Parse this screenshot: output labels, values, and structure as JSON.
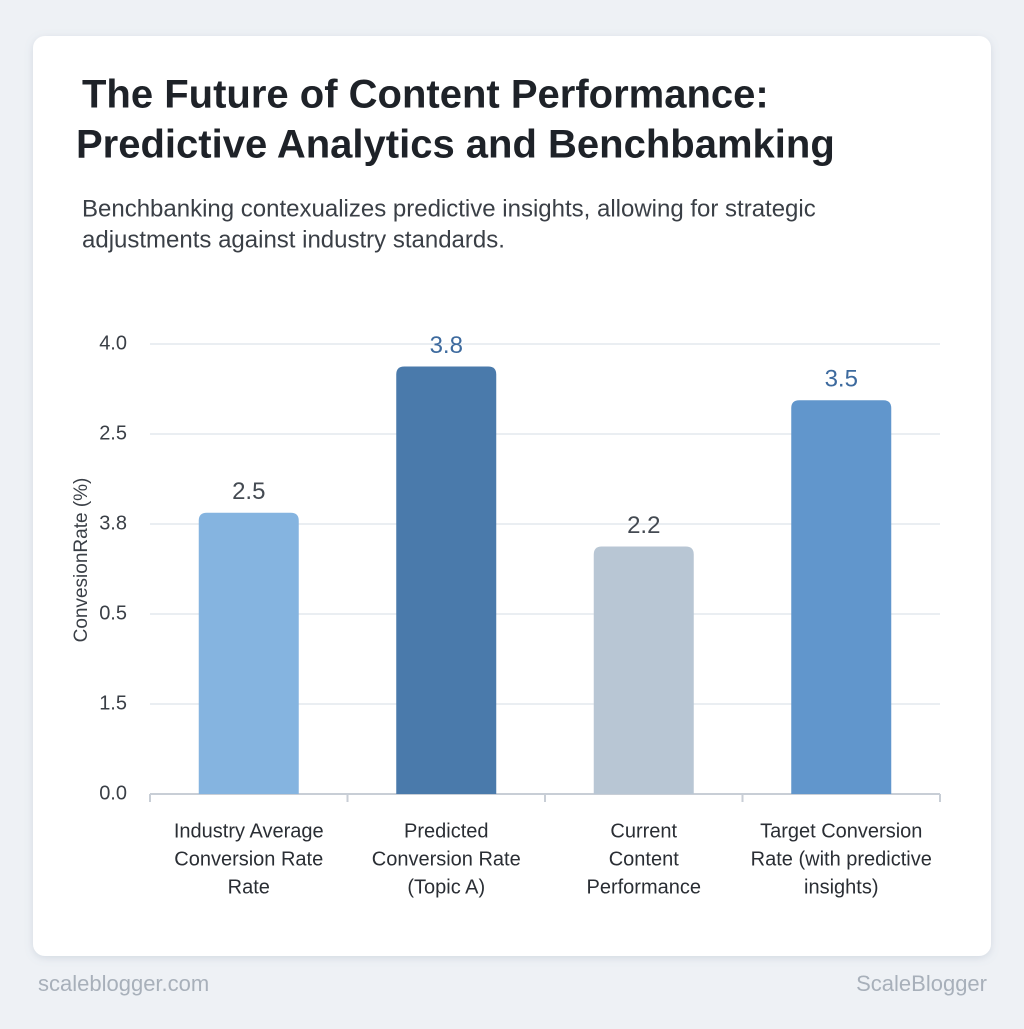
{
  "chart_data": {
    "type": "bar",
    "title": [
      "The Future of Content Performance:",
      "Predictive Analytics and Benchbamking"
    ],
    "subtitle": [
      "Benchbanking contexualizes predictive insights, allowing for strategic",
      "adjustments against industry standards."
    ],
    "y_label": "ConvesionRate (%)",
    "categories": [
      [
        "Industry Average",
        "Conversion Rate",
        "Rate"
      ],
      [
        "Predicted",
        "Conversion Rate",
        "(Topic A)"
      ],
      [
        "Current",
        "Content",
        "Performance"
      ],
      [
        "Target Conversion",
        "Rate (with predictive",
        "insights)"
      ]
    ],
    "values": [
      2.5,
      3.8,
      2.2,
      3.5
    ],
    "colors": [
      "#85b4e0",
      "#4a7aab",
      "#b8c6d4",
      "#6196cc"
    ],
    "value_label_colors": [
      "#444a52",
      "#3d6a9e",
      "#444a52",
      "#3d6a9e"
    ],
    "ylim": [
      0,
      4
    ],
    "yticks": [
      {
        "value": 0,
        "label": "0.0"
      },
      1.5,
      0.5,
      3.8,
      2.5,
      {
        "value": 4,
        "label": "4.0"
      }
    ],
    "grid": true,
    "footer_left": "scaleblogger.com",
    "footer_right": "ScaleBlogger"
  }
}
